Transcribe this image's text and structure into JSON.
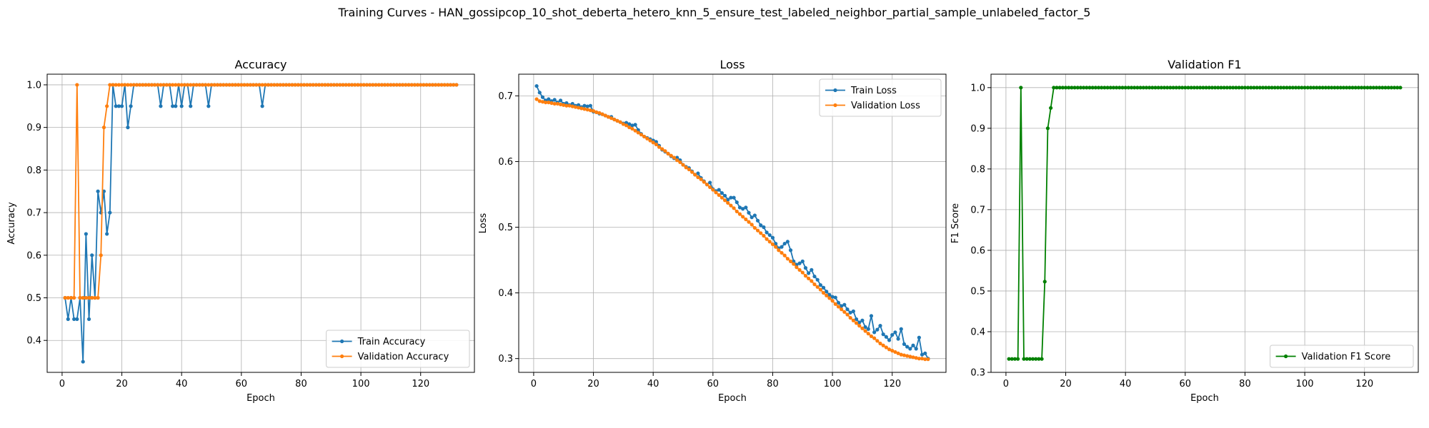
{
  "figure": {
    "title": "Training Curves - HAN_gossipcop_10_shot_deberta_hetero_knn_5_ensure_test_labeled_neighbor_partial_sample_unlabeled_factor_5"
  },
  "chart_data": [
    {
      "type": "line",
      "title": "Accuracy",
      "xlabel": "Epoch",
      "ylabel": "Accuracy",
      "xlim": [
        -5,
        138
      ],
      "ylim": [
        0.325,
        1.025
      ],
      "xticks": [
        0,
        20,
        40,
        60,
        80,
        100,
        120
      ],
      "yticks": [
        0.4,
        0.5,
        0.6,
        0.7,
        0.8,
        0.9,
        1.0
      ],
      "ytick_decimals": 1,
      "grid": true,
      "legend": "lower-right",
      "series": [
        {
          "name": "Train Accuracy",
          "color": "#1f77b4",
          "x_start": 1,
          "values": [
            0.5,
            0.45,
            0.5,
            0.45,
            0.45,
            0.5,
            0.35,
            0.65,
            0.45,
            0.6,
            0.5,
            0.75,
            0.7,
            0.75,
            0.65,
            0.7,
            1.0,
            0.95,
            0.95,
            0.95,
            1.0,
            0.9,
            0.95,
            1.0,
            1.0,
            1.0,
            1.0,
            1.0,
            1.0,
            1.0,
            1.0,
            1.0,
            0.95,
            1.0,
            1.0,
            1.0,
            0.95,
            0.95,
            1.0,
            0.95,
            1.0,
            1.0,
            0.95,
            1.0,
            1.0,
            1.0,
            1.0,
            1.0,
            0.95,
            1.0,
            1.0,
            1.0,
            1.0,
            1.0,
            1.0,
            1.0,
            1.0,
            1.0,
            1.0,
            1.0,
            1.0,
            1.0,
            1.0,
            1.0,
            1.0,
            1.0,
            0.95,
            1.0,
            1.0,
            1.0,
            1.0,
            1.0,
            1.0,
            1.0,
            1.0,
            1.0,
            1.0,
            1.0,
            1.0,
            1.0,
            1.0,
            1.0,
            1.0,
            1.0,
            1.0,
            1.0,
            1.0,
            1.0,
            1.0,
            1.0,
            1.0,
            1.0,
            1.0,
            1.0,
            1.0,
            1.0,
            1.0,
            1.0,
            1.0,
            1.0,
            1.0,
            1.0,
            1.0,
            1.0,
            1.0,
            1.0,
            1.0,
            1.0,
            1.0,
            1.0,
            1.0,
            1.0,
            1.0,
            1.0,
            1.0,
            1.0,
            1.0,
            1.0,
            1.0,
            1.0,
            1.0,
            1.0,
            1.0,
            1.0,
            1.0,
            1.0,
            1.0,
            1.0,
            1.0,
            1.0,
            1.0,
            1.0
          ]
        },
        {
          "name": "Validation Accuracy",
          "color": "#ff7f0e",
          "x_start": 1,
          "values": [
            0.5,
            0.5,
            0.5,
            0.5,
            1.0,
            0.5,
            0.5,
            0.5,
            0.5,
            0.5,
            0.5,
            0.5,
            0.6,
            0.9,
            0.95,
            1.0,
            1.0,
            1.0,
            1.0,
            1.0,
            1.0,
            1.0,
            1.0,
            1.0,
            1.0,
            1.0,
            1.0,
            1.0,
            1.0,
            1.0,
            1.0,
            1.0,
            1.0,
            1.0,
            1.0,
            1.0,
            1.0,
            1.0,
            1.0,
            1.0,
            1.0,
            1.0,
            1.0,
            1.0,
            1.0,
            1.0,
            1.0,
            1.0,
            1.0,
            1.0,
            1.0,
            1.0,
            1.0,
            1.0,
            1.0,
            1.0,
            1.0,
            1.0,
            1.0,
            1.0,
            1.0,
            1.0,
            1.0,
            1.0,
            1.0,
            1.0,
            1.0,
            1.0,
            1.0,
            1.0,
            1.0,
            1.0,
            1.0,
            1.0,
            1.0,
            1.0,
            1.0,
            1.0,
            1.0,
            1.0,
            1.0,
            1.0,
            1.0,
            1.0,
            1.0,
            1.0,
            1.0,
            1.0,
            1.0,
            1.0,
            1.0,
            1.0,
            1.0,
            1.0,
            1.0,
            1.0,
            1.0,
            1.0,
            1.0,
            1.0,
            1.0,
            1.0,
            1.0,
            1.0,
            1.0,
            1.0,
            1.0,
            1.0,
            1.0,
            1.0,
            1.0,
            1.0,
            1.0,
            1.0,
            1.0,
            1.0,
            1.0,
            1.0,
            1.0,
            1.0,
            1.0,
            1.0,
            1.0,
            1.0,
            1.0,
            1.0,
            1.0,
            1.0,
            1.0,
            1.0,
            1.0,
            1.0
          ]
        }
      ]
    },
    {
      "type": "line",
      "title": "Loss",
      "xlabel": "Epoch",
      "ylabel": "Loss",
      "xlim": [
        -5,
        138
      ],
      "ylim": [
        0.279,
        0.733
      ],
      "xticks": [
        0,
        20,
        40,
        60,
        80,
        100,
        120
      ],
      "yticks": [
        0.3,
        0.4,
        0.5,
        0.6,
        0.7
      ],
      "ytick_decimals": 1,
      "grid": true,
      "legend": "upper-right",
      "series": [
        {
          "name": "Train Loss",
          "color": "#1f77b4",
          "x_start": 1,
          "values": [
            0.715,
            0.705,
            0.698,
            0.693,
            0.695,
            0.692,
            0.694,
            0.69,
            0.693,
            0.688,
            0.689,
            0.686,
            0.688,
            0.685,
            0.686,
            0.683,
            0.685,
            0.684,
            0.685,
            0.676,
            0.675,
            0.673,
            0.672,
            0.67,
            0.668,
            0.668,
            0.664,
            0.662,
            0.66,
            0.658,
            0.659,
            0.657,
            0.655,
            0.656,
            0.648,
            0.642,
            0.638,
            0.636,
            0.634,
            0.632,
            0.63,
            0.624,
            0.618,
            0.615,
            0.612,
            0.608,
            0.605,
            0.606,
            0.602,
            0.595,
            0.592,
            0.59,
            0.585,
            0.58,
            0.582,
            0.575,
            0.57,
            0.565,
            0.568,
            0.558,
            0.555,
            0.557,
            0.552,
            0.548,
            0.542,
            0.545,
            0.545,
            0.538,
            0.53,
            0.528,
            0.53,
            0.522,
            0.515,
            0.518,
            0.51,
            0.503,
            0.5,
            0.492,
            0.488,
            0.484,
            0.475,
            0.468,
            0.47,
            0.475,
            0.478,
            0.465,
            0.448,
            0.443,
            0.445,
            0.448,
            0.438,
            0.43,
            0.435,
            0.425,
            0.42,
            0.412,
            0.408,
            0.402,
            0.397,
            0.394,
            0.393,
            0.385,
            0.38,
            0.382,
            0.375,
            0.37,
            0.372,
            0.36,
            0.355,
            0.358,
            0.348,
            0.345,
            0.365,
            0.34,
            0.344,
            0.35,
            0.337,
            0.333,
            0.328,
            0.336,
            0.34,
            0.33,
            0.345,
            0.322,
            0.318,
            0.315,
            0.32,
            0.315,
            0.332,
            0.306,
            0.308,
            0.3
          ]
        },
        {
          "name": "Validation Loss",
          "color": "#ff7f0e",
          "x_start": 1,
          "values": [
            0.695,
            0.692,
            0.691,
            0.69,
            0.69,
            0.689,
            0.688,
            0.688,
            0.687,
            0.686,
            0.685,
            0.685,
            0.684,
            0.683,
            0.682,
            0.681,
            0.68,
            0.679,
            0.678,
            0.677,
            0.675,
            0.674,
            0.672,
            0.67,
            0.668,
            0.666,
            0.664,
            0.662,
            0.66,
            0.657,
            0.655,
            0.652,
            0.65,
            0.647,
            0.644,
            0.641,
            0.638,
            0.635,
            0.632,
            0.629,
            0.626,
            0.622,
            0.619,
            0.616,
            0.612,
            0.609,
            0.606,
            0.602,
            0.599,
            0.595,
            0.591,
            0.588,
            0.584,
            0.58,
            0.576,
            0.573,
            0.569,
            0.565,
            0.561,
            0.557,
            0.553,
            0.549,
            0.545,
            0.541,
            0.537,
            0.533,
            0.529,
            0.524,
            0.52,
            0.516,
            0.512,
            0.508,
            0.504,
            0.499,
            0.495,
            0.491,
            0.487,
            0.482,
            0.478,
            0.474,
            0.47,
            0.465,
            0.461,
            0.457,
            0.452,
            0.448,
            0.444,
            0.439,
            0.435,
            0.431,
            0.426,
            0.422,
            0.418,
            0.413,
            0.409,
            0.405,
            0.4,
            0.396,
            0.392,
            0.388,
            0.383,
            0.379,
            0.375,
            0.371,
            0.367,
            0.362,
            0.358,
            0.354,
            0.35,
            0.346,
            0.342,
            0.338,
            0.334,
            0.331,
            0.327,
            0.323,
            0.32,
            0.317,
            0.314,
            0.312,
            0.31,
            0.308,
            0.306,
            0.305,
            0.304,
            0.303,
            0.302,
            0.301,
            0.3,
            0.3,
            0.299,
            0.299
          ]
        }
      ]
    },
    {
      "type": "line",
      "title": "Validation F1",
      "xlabel": "Epoch",
      "ylabel": "F1 Score",
      "xlim": [
        -5,
        138
      ],
      "ylim": [
        0.3,
        1.033
      ],
      "xticks": [
        0,
        20,
        40,
        60,
        80,
        100,
        120
      ],
      "yticks": [
        0.3,
        0.4,
        0.5,
        0.6,
        0.7,
        0.8,
        0.9,
        1.0
      ],
      "ytick_decimals": 1,
      "grid": true,
      "legend": "lower-right",
      "series": [
        {
          "name": "Validation F1 Score",
          "color": "#008000",
          "x_start": 1,
          "values": [
            0.333,
            0.333,
            0.333,
            0.333,
            1.0,
            0.333,
            0.333,
            0.333,
            0.333,
            0.333,
            0.333,
            0.333,
            0.523,
            0.9,
            0.95,
            1.0,
            1.0,
            1.0,
            1.0,
            1.0,
            1.0,
            1.0,
            1.0,
            1.0,
            1.0,
            1.0,
            1.0,
            1.0,
            1.0,
            1.0,
            1.0,
            1.0,
            1.0,
            1.0,
            1.0,
            1.0,
            1.0,
            1.0,
            1.0,
            1.0,
            1.0,
            1.0,
            1.0,
            1.0,
            1.0,
            1.0,
            1.0,
            1.0,
            1.0,
            1.0,
            1.0,
            1.0,
            1.0,
            1.0,
            1.0,
            1.0,
            1.0,
            1.0,
            1.0,
            1.0,
            1.0,
            1.0,
            1.0,
            1.0,
            1.0,
            1.0,
            1.0,
            1.0,
            1.0,
            1.0,
            1.0,
            1.0,
            1.0,
            1.0,
            1.0,
            1.0,
            1.0,
            1.0,
            1.0,
            1.0,
            1.0,
            1.0,
            1.0,
            1.0,
            1.0,
            1.0,
            1.0,
            1.0,
            1.0,
            1.0,
            1.0,
            1.0,
            1.0,
            1.0,
            1.0,
            1.0,
            1.0,
            1.0,
            1.0,
            1.0,
            1.0,
            1.0,
            1.0,
            1.0,
            1.0,
            1.0,
            1.0,
            1.0,
            1.0,
            1.0,
            1.0,
            1.0,
            1.0,
            1.0,
            1.0,
            1.0,
            1.0,
            1.0,
            1.0,
            1.0,
            1.0,
            1.0,
            1.0,
            1.0,
            1.0,
            1.0,
            1.0,
            1.0,
            1.0,
            1.0,
            1.0,
            1.0
          ]
        }
      ]
    }
  ]
}
